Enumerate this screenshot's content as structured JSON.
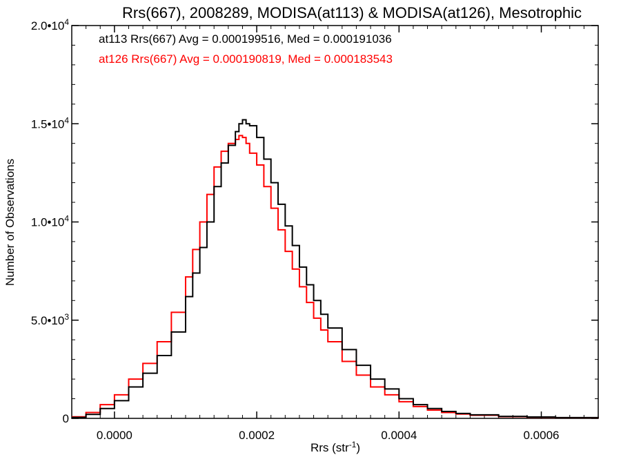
{
  "chart_data": {
    "type": "line",
    "title": "Rrs(667), 2008289, MODISA(at113) & MODISA(at126), Mesotrophic",
    "xlabel_main": "Rrs (str",
    "xlabel_sup": "-1",
    "xlabel_end": ")",
    "ylabel": "Number of Observations",
    "xlim": [
      -6e-05,
      0.00068
    ],
    "ylim": [
      0,
      20000
    ],
    "x_ticks": [
      {
        "value": 0.0,
        "label": "0.0000"
      },
      {
        "value": 0.0002,
        "label": "0.0002"
      },
      {
        "value": 0.0004,
        "label": "0.0004"
      },
      {
        "value": 0.0006,
        "label": "0.0006"
      }
    ],
    "y_ticks": [
      {
        "value": 0,
        "label": "0"
      },
      {
        "value": 5000,
        "label": "5.0•10",
        "sup": "3"
      },
      {
        "value": 10000,
        "label": "1.0•10",
        "sup": "4"
      },
      {
        "value": 15000,
        "label": "1.5•10",
        "sup": "4"
      },
      {
        "value": 20000,
        "label": "2.0•10",
        "sup": "4"
      }
    ],
    "annotations": [
      {
        "text": "at113 Rrs(667) Avg = 0.000199516, Med = 0.000191036",
        "color": "#000000"
      },
      {
        "text": "at126 Rrs(667) Avg = 0.000190819, Med = 0.000183543",
        "color": "#ff0000"
      }
    ],
    "series": [
      {
        "color": "#000000",
        "step": true,
        "x": [
          -6e-05,
          -4e-05,
          -2e-05,
          0.0,
          2e-05,
          4e-05,
          6e-05,
          8e-05,
          0.0001,
          0.00011,
          0.00012,
          0.00013,
          0.00014,
          0.00015,
          0.00016,
          0.00017,
          0.000175,
          0.00018,
          0.000185,
          0.00019,
          0.0002,
          0.00021,
          0.00022,
          0.00023,
          0.00024,
          0.00025,
          0.00026,
          0.00027,
          0.00028,
          0.00029,
          0.0003,
          0.00032,
          0.00034,
          0.00036,
          0.00038,
          0.0004,
          0.00042,
          0.00044,
          0.00046,
          0.00048,
          0.0005,
          0.00054,
          0.00058,
          0.00062,
          0.00068
        ],
        "y": [
          50,
          200,
          500,
          900,
          1600,
          2300,
          3200,
          4400,
          6200,
          7400,
          8700,
          10000,
          11800,
          13000,
          13900,
          14600,
          15000,
          15200,
          15000,
          14900,
          14300,
          13200,
          12000,
          10900,
          9800,
          8800,
          7700,
          6800,
          6000,
          5300,
          4600,
          3500,
          2700,
          2000,
          1500,
          1000,
          700,
          500,
          350,
          250,
          180,
          100,
          70,
          40,
          20
        ]
      },
      {
        "color": "#ff0000",
        "step": true,
        "x": [
          -6e-05,
          -4e-05,
          -2e-05,
          0.0,
          2e-05,
          4e-05,
          6e-05,
          8e-05,
          0.0001,
          0.00011,
          0.00012,
          0.00013,
          0.00014,
          0.00015,
          0.00016,
          0.00017,
          0.000175,
          0.00018,
          0.000185,
          0.00019,
          0.0002,
          0.00021,
          0.00022,
          0.00023,
          0.00024,
          0.00025,
          0.00026,
          0.00027,
          0.00028,
          0.00029,
          0.0003,
          0.00032,
          0.00034,
          0.00036,
          0.00038,
          0.0004,
          0.00042,
          0.00044,
          0.00046,
          0.00048,
          0.0005,
          0.00054,
          0.00058,
          0.00062,
          0.00068
        ],
        "y": [
          80,
          300,
          700,
          1200,
          2000,
          2800,
          3900,
          5400,
          7200,
          8600,
          10000,
          11400,
          12800,
          13600,
          14000,
          14200,
          14400,
          14300,
          14000,
          13500,
          12900,
          11800,
          10700,
          9600,
          8500,
          7600,
          6700,
          5900,
          5100,
          4500,
          3900,
          2900,
          2200,
          1600,
          1200,
          850,
          600,
          420,
          300,
          220,
          160,
          90,
          60,
          35,
          15
        ]
      }
    ]
  }
}
